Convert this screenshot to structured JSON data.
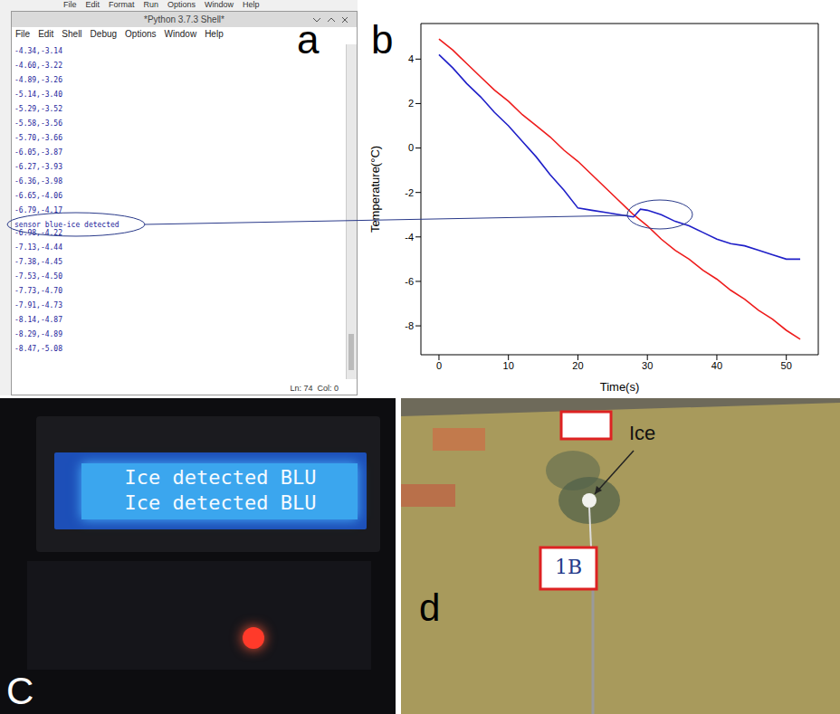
{
  "panel_letters": [
    "a",
    "b",
    "C",
    "d"
  ],
  "shell": {
    "app_menu": [
      "File",
      "Edit",
      "Format",
      "Run",
      "Options",
      "Window",
      "Help"
    ],
    "title": "*Python 3.7.3 Shell*",
    "menu": [
      "File",
      "Edit",
      "Shell",
      "Debug",
      "Options",
      "Window",
      "Help"
    ],
    "lines": [
      "-4.34,-3.14",
      "-4.60,-3.22",
      "-4.89,-3.26",
      "-5.14,-3.40",
      "-5.29,-3.52",
      "-5.58,-3.56",
      "-5.70,-3.66",
      "-6.05,-3.87",
      "-6.27,-3.93",
      "-6.36,-3.98",
      "-6.65,-4.06",
      "-6.79,-4.17",
      "sensor blue-ice detected",
      "-6.98,-4.22",
      "-7.13,-4.44",
      "-7.38,-4.45",
      "-7.53,-4.50",
      "-7.73,-4.70",
      "-7.91,-4.73",
      "-8.14,-4.87",
      "-8.29,-4.89",
      "-8.47,-5.08"
    ],
    "status": "Ln: 74  Col: 0"
  },
  "chart_data": {
    "type": "line",
    "xlabel": "Time(s)",
    "ylabel": "Temperature(°C)",
    "x": [
      0,
      2,
      4,
      6,
      8,
      10,
      12,
      14,
      16,
      18,
      20,
      22,
      24,
      26,
      27,
      28,
      29,
      30,
      32,
      34,
      36,
      38,
      40,
      42,
      44,
      46,
      48,
      50,
      52
    ],
    "series": [
      {
        "color": "#ee1c1c",
        "values": [
          4.9,
          4.4,
          3.8,
          3.2,
          2.6,
          2.1,
          1.5,
          1.0,
          0.5,
          -0.1,
          -0.6,
          -1.2,
          -1.8,
          -2.4,
          -2.7,
          -3.0,
          -3.25,
          -3.5,
          -4.1,
          -4.6,
          -5.0,
          -5.5,
          -5.9,
          -6.4,
          -6.8,
          -7.3,
          -7.7,
          -8.2,
          -8.6
        ]
      },
      {
        "color": "#1f1fc8",
        "values": [
          4.2,
          3.6,
          2.9,
          2.3,
          1.6,
          1.0,
          0.3,
          -0.4,
          -1.2,
          -1.9,
          -2.7,
          -2.8,
          -2.9,
          -3.0,
          -3.05,
          -3.1,
          -2.75,
          -2.8,
          -3.0,
          -3.3,
          -3.5,
          -3.8,
          -4.1,
          -4.3,
          -4.4,
          -4.6,
          -4.8,
          -5.0,
          -5.0
        ]
      }
    ],
    "xlim": [
      -2.6,
      54.6
    ],
    "ylim": [
      -9.3,
      5.6
    ],
    "xticks": [
      0,
      10,
      20,
      30,
      40,
      50
    ],
    "yticks": [
      -8,
      -6,
      -4,
      -2,
      0,
      2,
      4
    ],
    "grid": false
  },
  "lcd": {
    "lines": [
      "Ice detected BLU",
      "Ice detected BLU"
    ]
  },
  "photo": {
    "annotation": "Ice",
    "tag": "1B"
  }
}
